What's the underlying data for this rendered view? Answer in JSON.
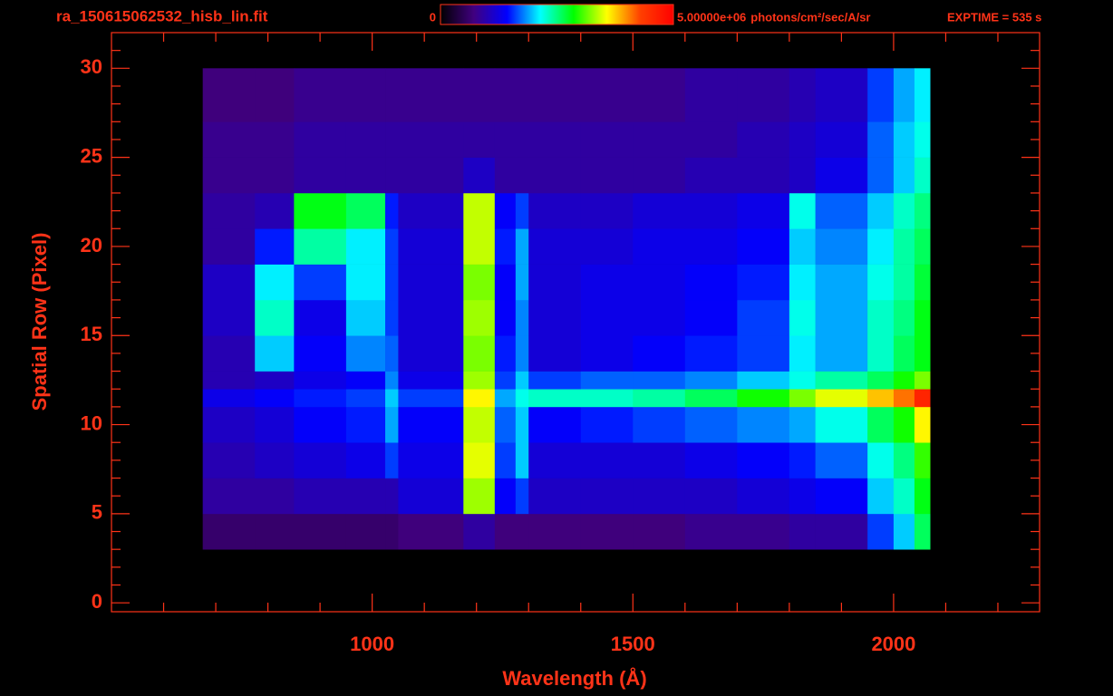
{
  "chart_data": {
    "type": "heatmap",
    "title": "ra_150615062532_hisb_lin.fit",
    "exposure": "EXPTIME = 535 s",
    "colorbar_unit": "photons/cm²/sec/A/sr",
    "x_label": "Wavelength (Å)",
    "y_label": "Spatial Row (Pixel)",
    "xlim": [
      500,
      2280
    ],
    "ylim": [
      -0.5,
      32
    ],
    "xticks": [
      1000,
      1500,
      2000
    ],
    "xminor": [
      600,
      700,
      800,
      900,
      1100,
      1200,
      1300,
      1400,
      1600,
      1700,
      1800,
      1900,
      2100,
      2200
    ],
    "yticks": [
      0,
      5,
      10,
      15,
      20,
      25,
      30
    ],
    "yminor": [
      1,
      2,
      3,
      4,
      6,
      7,
      8,
      9,
      11,
      12,
      13,
      14,
      16,
      17,
      18,
      19,
      21,
      22,
      23,
      24,
      26,
      27,
      28,
      29,
      31
    ],
    "zlim": [
      0,
      5000000
    ],
    "zticks": [
      0,
      {
        "value": 5000000,
        "label": "5.00000e+06"
      }
    ],
    "colormap": [
      "#000000",
      "#40007f",
      "#0000ff",
      "#00ffff",
      "#00ff00",
      "#ffff00",
      "#ff4000",
      "#ff0000"
    ],
    "x": [
      675,
      775,
      850,
      950,
      1025,
      1050,
      1175,
      1235,
      1275,
      1300,
      1400,
      1500,
      1600,
      1700,
      1800,
      1850,
      1950,
      2000,
      2040,
      2070
    ],
    "y": [
      3,
      5,
      7,
      9,
      11,
      12,
      13,
      15,
      17,
      19,
      21,
      23,
      25,
      27,
      30
    ],
    "z": [
      [
        600000.0,
        600000.0,
        600000.0,
        600000.0,
        600000.0,
        700000.0,
        900000.0,
        700000.0,
        700000.0,
        700000.0,
        700000.0,
        700000.0,
        800000.0,
        800000.0,
        900000.0,
        900000.0,
        1600000.0,
        2000000.0,
        2600000.0
      ],
      [
        900000.0,
        900000.0,
        1000000.0,
        1000000.0,
        1000000.0,
        1200000.0,
        3300000.0,
        1400000.0,
        1600000.0,
        1100000.0,
        1100000.0,
        1100000.0,
        1100000.0,
        1200000.0,
        1300000.0,
        1400000.0,
        2000000.0,
        2300000.0,
        2800000.0
      ],
      [
        1000000.0,
        1100000.0,
        1200000.0,
        1300000.0,
        1600000.0,
        1300000.0,
        3500000.0,
        1600000.0,
        2000000.0,
        1200000.0,
        1200000.0,
        1200000.0,
        1300000.0,
        1400000.0,
        1500000.0,
        1700000.0,
        2200000.0,
        2500000.0,
        3000000.0
      ],
      [
        1100000.0,
        1200000.0,
        1400000.0,
        1500000.0,
        1900000.0,
        1400000.0,
        3400000.0,
        1700000.0,
        2000000.0,
        1400000.0,
        1500000.0,
        1600000.0,
        1700000.0,
        1800000.0,
        1900000.0,
        2200000.0,
        2600000.0,
        2900000.0,
        3600000.0
      ],
      [
        1300000.0,
        1400000.0,
        1500000.0,
        1600000.0,
        2000000.0,
        1600000.0,
        3600000.0,
        1900000.0,
        2200000.0,
        2300000.0,
        2300000.0,
        2400000.0,
        2600000.0,
        2900000.0,
        3200000.0,
        3500000.0,
        3800000.0,
        4100000.0,
        4600000.0
      ],
      [
        1000000.0,
        1100000.0,
        1300000.0,
        1400000.0,
        1800000.0,
        1300000.0,
        3300000.0,
        1600000.0,
        2000000.0,
        1600000.0,
        1700000.0,
        1700000.0,
        1800000.0,
        2000000.0,
        2200000.0,
        2400000.0,
        2600000.0,
        2900000.0,
        3200000.0
      ],
      [
        1000000.0,
        2000000.0,
        1400000.0,
        1800000.0,
        1700000.0,
        1200000.0,
        3200000.0,
        1500000.0,
        1800000.0,
        1200000.0,
        1300000.0,
        1400000.0,
        1500000.0,
        1600000.0,
        2100000.0,
        1900000.0,
        2300000.0,
        2600000.0,
        2800000.0
      ],
      [
        1100000.0,
        2300000.0,
        1300000.0,
        2000000.0,
        1600000.0,
        1200000.0,
        3300000.0,
        1400000.0,
        1800000.0,
        1200000.0,
        1300000.0,
        1300000.0,
        1400000.0,
        1600000.0,
        2200000.0,
        1900000.0,
        2300000.0,
        2500000.0,
        2800000.0
      ],
      [
        1100000.0,
        2100000.0,
        1600000.0,
        2100000.0,
        1600000.0,
        1200000.0,
        3200000.0,
        1400000.0,
        1900000.0,
        1200000.0,
        1300000.0,
        1300000.0,
        1400000.0,
        1500000.0,
        2100000.0,
        1900000.0,
        2200000.0,
        2400000.0,
        2700000.0
      ],
      [
        900000.0,
        1500000.0,
        2400000.0,
        2100000.0,
        1600000.0,
        1200000.0,
        3400000.0,
        1500000.0,
        1900000.0,
        1200000.0,
        1200000.0,
        1300000.0,
        1300000.0,
        1400000.0,
        2000000.0,
        1800000.0,
        2100000.0,
        2400000.0,
        2600000.0
      ],
      [
        900000.0,
        1000000.0,
        2800000.0,
        2600000.0,
        1500000.0,
        1100000.0,
        3400000.0,
        1400000.0,
        1600000.0,
        1100000.0,
        1100000.0,
        1200000.0,
        1200000.0,
        1300000.0,
        2200000.0,
        1700000.0,
        2000000.0,
        2300000.0,
        2500000.0
      ],
      [
        800000.0,
        800000.0,
        900000.0,
        900000.0,
        900000.0,
        900000.0,
        1100000.0,
        900000.0,
        900000.0,
        900000.0,
        900000.0,
        900000.0,
        1000000.0,
        1000000.0,
        1100000.0,
        1300000.0,
        1700000.0,
        2000000.0,
        2300000.0
      ],
      [
        800000.0,
        800000.0,
        900000.0,
        900000.0,
        900000.0,
        900000.0,
        900000.0,
        900000.0,
        900000.0,
        900000.0,
        900000.0,
        900000.0,
        900000.0,
        1000000.0,
        1100000.0,
        1200000.0,
        1700000.0,
        2000000.0,
        2200000.0
      ],
      [
        700000.0,
        700000.0,
        800000.0,
        800000.0,
        800000.0,
        800000.0,
        800000.0,
        800000.0,
        800000.0,
        800000.0,
        800000.0,
        800000.0,
        900000.0,
        900000.0,
        1000000.0,
        1100000.0,
        1600000.0,
        1900000.0,
        2100000.0
      ]
    ]
  }
}
